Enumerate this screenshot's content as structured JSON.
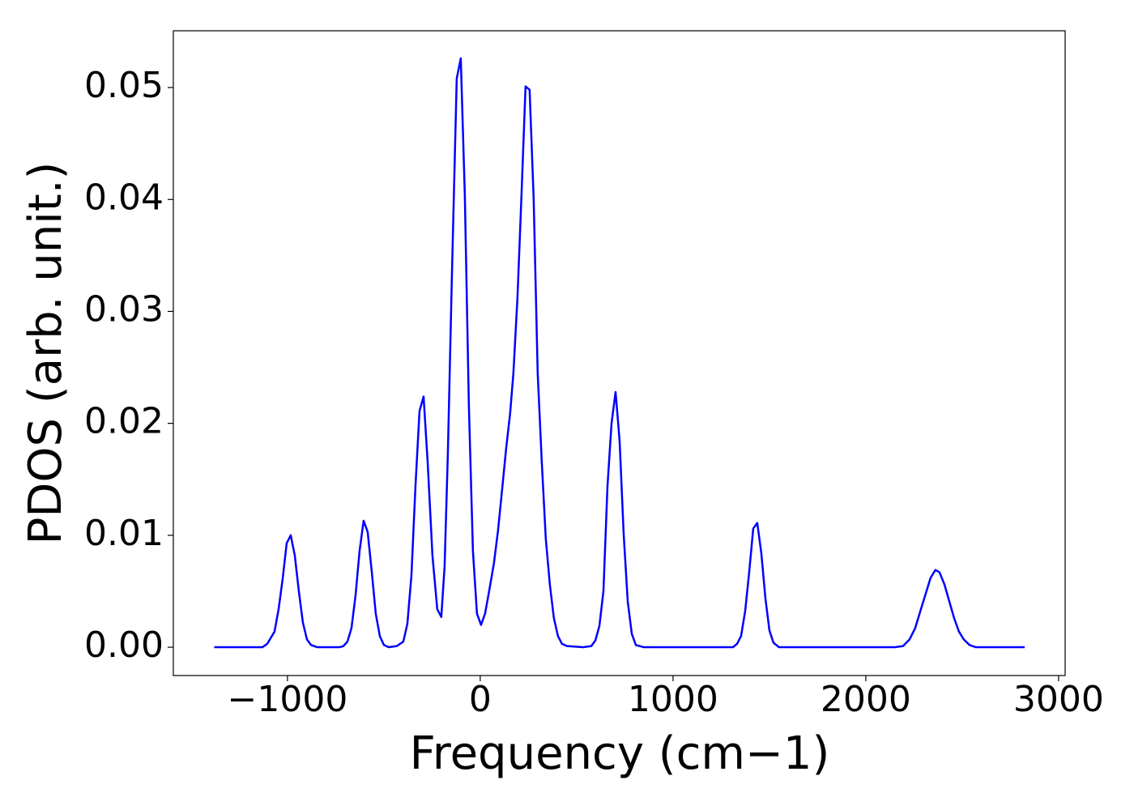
{
  "chart_data": {
    "type": "line",
    "xlabel": "Frequency (cm−1)",
    "ylabel": "PDOS (arb. unit.)",
    "color": "#0000ff",
    "xlim": [
      -1592,
      3034
    ],
    "ylim": [
      -0.00253,
      0.05507
    ],
    "xticks": [
      {
        "value": -1000,
        "label": "−1000"
      },
      0,
      1000,
      2000,
      3000
    ],
    "yticks": [
      {
        "value": 0,
        "label": "0.00"
      },
      0.01,
      0.02,
      0.03,
      0.04,
      0.05
    ],
    "x": [
      -1380,
      -1130,
      -1105,
      -1067,
      -1046,
      -1025,
      -1004,
      -983,
      -962,
      -941,
      -920,
      -899,
      -878,
      -845,
      -731,
      -710,
      -689,
      -668,
      -647,
      -626,
      -605,
      -584,
      -563,
      -542,
      -521,
      -500,
      -475,
      -433,
      -399,
      -378,
      -357,
      -336,
      -315,
      -294,
      -273,
      -248,
      -223,
      -202,
      -185,
      -168,
      -147,
      -122,
      -101,
      -80,
      -59,
      -38,
      -17,
      4,
      25,
      46,
      71,
      92,
      113,
      134,
      155,
      172,
      193,
      214,
      235,
      256,
      277,
      298,
      319,
      340,
      361,
      382,
      403,
      424,
      450,
      534,
      576,
      597,
      618,
      639,
      660,
      681,
      702,
      723,
      744,
      765,
      786,
      807,
      849,
      1311,
      1332,
      1353,
      1374,
      1395,
      1416,
      1437,
      1458,
      1479,
      1500,
      1521,
      1550,
      2151,
      2193,
      2227,
      2256,
      2286,
      2311,
      2336,
      2361,
      2382,
      2408,
      2433,
      2458,
      2483,
      2508,
      2538,
      2571,
      2824
    ],
    "values": [
      0,
      0,
      0.0003,
      0.0014,
      0.0034,
      0.0061,
      0.0093,
      0.01,
      0.0082,
      0.005,
      0.0022,
      0.0007,
      0.0002,
      0,
      0,
      0.0001,
      0.0005,
      0.0017,
      0.0046,
      0.0086,
      0.0113,
      0.0103,
      0.0068,
      0.003,
      0.001,
      0.0002,
      0,
      0.0001,
      0.0005,
      0.0021,
      0.0064,
      0.0144,
      0.0211,
      0.0224,
      0.0166,
      0.0082,
      0.0034,
      0.0027,
      0.0072,
      0.0173,
      0.0332,
      0.0508,
      0.0526,
      0.0404,
      0.0216,
      0.0086,
      0.003,
      0.002,
      0.003,
      0.005,
      0.0075,
      0.0104,
      0.014,
      0.0177,
      0.0209,
      0.0245,
      0.0312,
      0.0404,
      0.0501,
      0.0498,
      0.0401,
      0.0245,
      0.0166,
      0.0097,
      0.0056,
      0.0026,
      0.001,
      0.0003,
      0.0001,
      0,
      0.0001,
      0.0006,
      0.0019,
      0.005,
      0.0144,
      0.02,
      0.0228,
      0.0184,
      0.0101,
      0.0041,
      0.0012,
      0.0002,
      0,
      0,
      0.0003,
      0.001,
      0.0032,
      0.0067,
      0.0106,
      0.0111,
      0.0084,
      0.0044,
      0.0015,
      0.0004,
      0,
      0,
      0.0001,
      0.0007,
      0.0017,
      0.0034,
      0.0048,
      0.0062,
      0.0069,
      0.0067,
      0.0056,
      0.0041,
      0.0026,
      0.0014,
      0.0007,
      0.0002,
      0,
      0
    ]
  }
}
